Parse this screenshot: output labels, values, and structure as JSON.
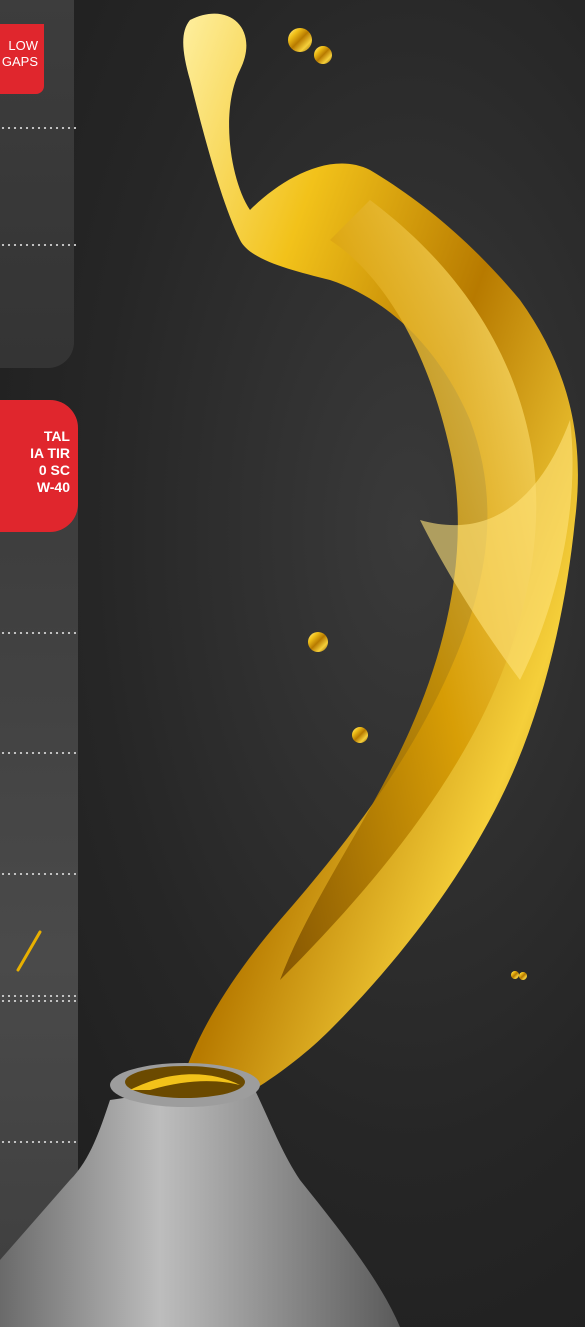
{
  "top_badge": {
    "lines": [
      "LOW",
      "GAPS"
    ]
  },
  "product_badge": {
    "lines": [
      "TAL",
      "IA TIR",
      "0 SC",
      "W-40"
    ]
  },
  "icons": {
    "check": "check-icon",
    "splash": "oil-splash",
    "bottle": "oil-bottle"
  },
  "colors": {
    "accent": "#e0262d",
    "background": "#262626",
    "panel": "#3b3b3b",
    "gold": "#e8b000"
  }
}
